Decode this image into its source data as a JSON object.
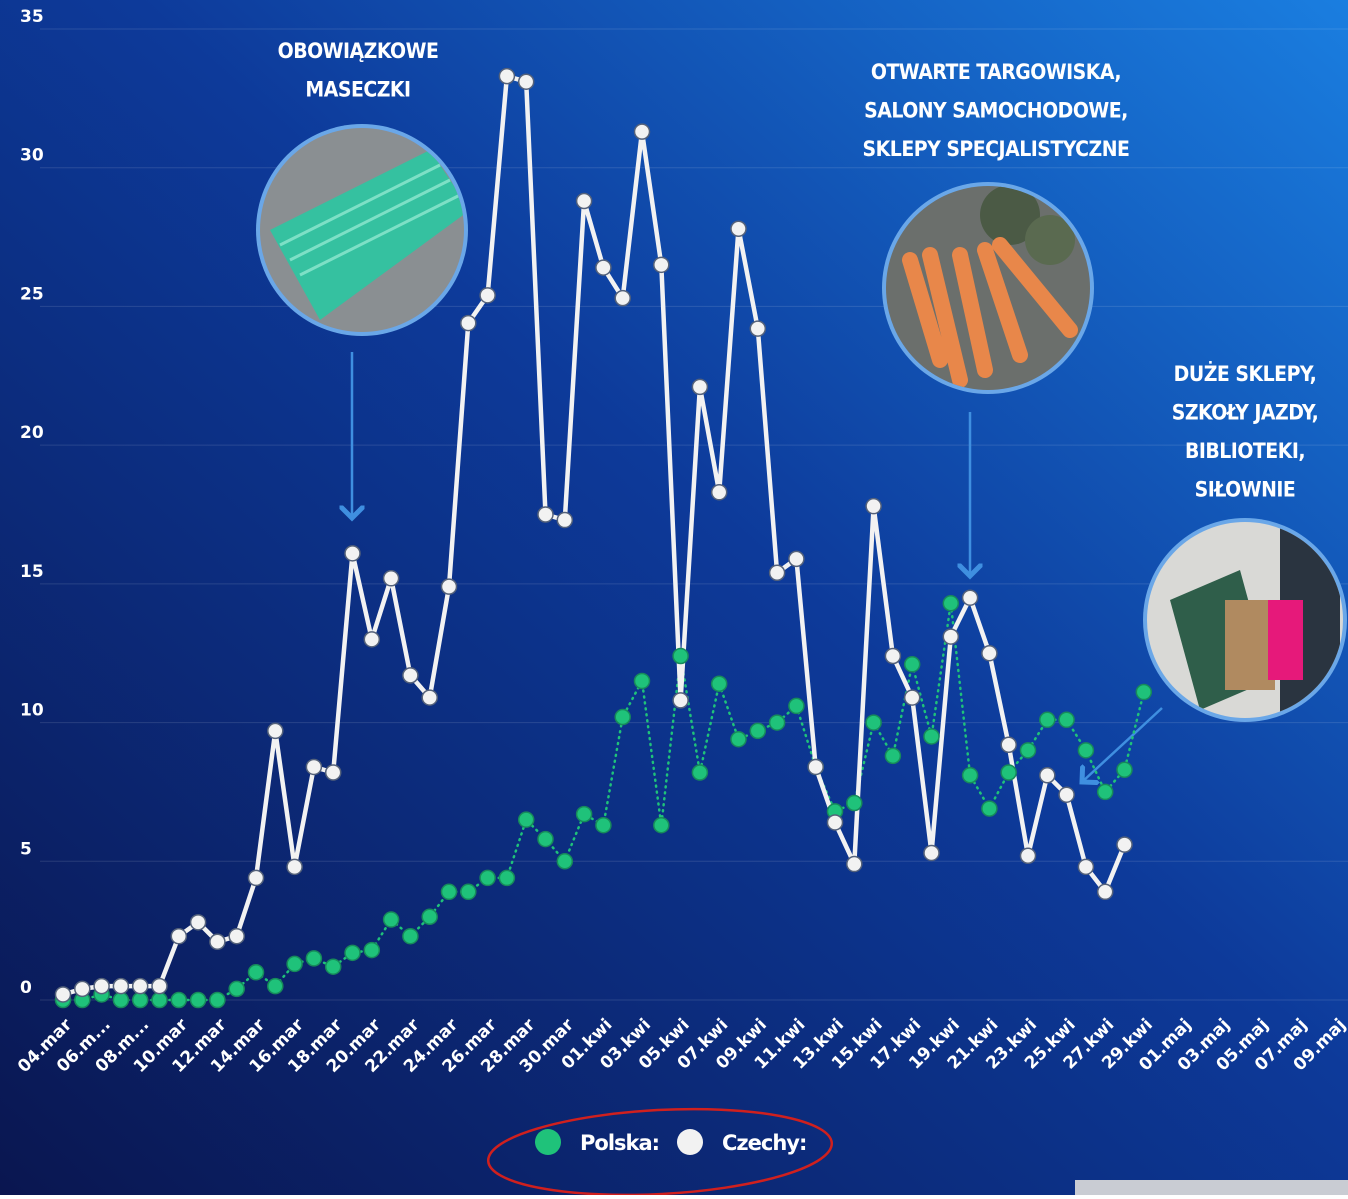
{
  "chart_data": {
    "type": "line",
    "categories": [
      "04.mar",
      null,
      "06.m...",
      null,
      "08.m...",
      null,
      "10.mar",
      null,
      "12.mar",
      null,
      "14.mar",
      null,
      "16.mar",
      null,
      "18.mar",
      null,
      "20.mar",
      null,
      "22.mar",
      null,
      "24.mar",
      null,
      "26.mar",
      null,
      "28.mar",
      null,
      "30.mar",
      null,
      "01.kwi",
      null,
      "03.kwi",
      null,
      "05.kwi",
      null,
      "07.kwi",
      null,
      "09.kwi",
      null,
      "11.kwi",
      null,
      "13.kwi",
      null,
      "15.kwi",
      null,
      "17.kwi",
      null,
      "19.kwi",
      null,
      "21.kwi",
      null,
      "23.kwi",
      null,
      "25.kwi",
      null,
      "27.kwi",
      null,
      "29.kwi",
      null,
      "01.maj",
      null,
      "03.maj",
      null,
      "05.maj",
      null,
      "07.maj",
      null,
      "09.maj"
    ],
    "series": [
      {
        "name": "Polska:",
        "color": "#1fc27a",
        "values": [
          0,
          0,
          0.2,
          0,
          0,
          0,
          0,
          0,
          0,
          0.4,
          1.0,
          0.5,
          1.3,
          1.5,
          1.2,
          1.7,
          1.8,
          2.9,
          2.3,
          3.0,
          3.9,
          3.9,
          4.4,
          4.4,
          6.5,
          5.8,
          5.0,
          6.7,
          6.3,
          10.2,
          11.5,
          6.3,
          12.4,
          8.2,
          11.4,
          9.4,
          9.7,
          10.0,
          10.6,
          8.4,
          6.8,
          7.1,
          10.0,
          8.8,
          12.1,
          9.5,
          14.3,
          8.1,
          6.9,
          8.2,
          9.0,
          10.1,
          10.1,
          9.0,
          7.5,
          8.3,
          11.1,
          null,
          null,
          null,
          null,
          null,
          null,
          null,
          null,
          null,
          null
        ]
      },
      {
        "name": "Czechy:",
        "color": "#f2f2f2",
        "values": [
          0.2,
          0.4,
          0.5,
          0.5,
          0.5,
          0.5,
          2.3,
          2.8,
          2.1,
          2.3,
          4.4,
          9.7,
          4.8,
          8.4,
          8.2,
          16.1,
          13.0,
          15.2,
          11.7,
          10.9,
          14.9,
          24.4,
          25.4,
          33.3,
          33.1,
          17.5,
          17.3,
          28.8,
          26.4,
          25.3,
          31.3,
          26.5,
          10.8,
          22.1,
          18.3,
          27.8,
          24.2,
          15.4,
          15.9,
          8.4,
          6.4,
          4.9,
          17.8,
          12.4,
          10.9,
          5.3,
          13.1,
          14.5,
          12.5,
          9.2,
          5.2,
          8.1,
          7.4,
          4.8,
          3.9,
          5.6,
          null,
          null,
          null,
          null,
          null,
          null,
          null,
          null,
          null,
          null,
          null
        ]
      }
    ],
    "ylim": [
      0,
      35
    ],
    "yticks": [
      0,
      5,
      10,
      15,
      20,
      25,
      30,
      35
    ],
    "grid": true,
    "annotations": [
      {
        "lines": [
          "OBOWIĄZKOWE",
          "MASECZKI"
        ]
      },
      {
        "lines": [
          "OTWARTE TARGOWISKA,",
          "SALONY SAMOCHODOWE,",
          "SKLEPY SPECJALISTYCZNE"
        ]
      },
      {
        "lines": [
          "DUŻE SKLEPY,",
          "SZKOŁY JAZDY,",
          "BIBLIOTEKI,",
          "SIŁOWNIE"
        ]
      }
    ]
  }
}
